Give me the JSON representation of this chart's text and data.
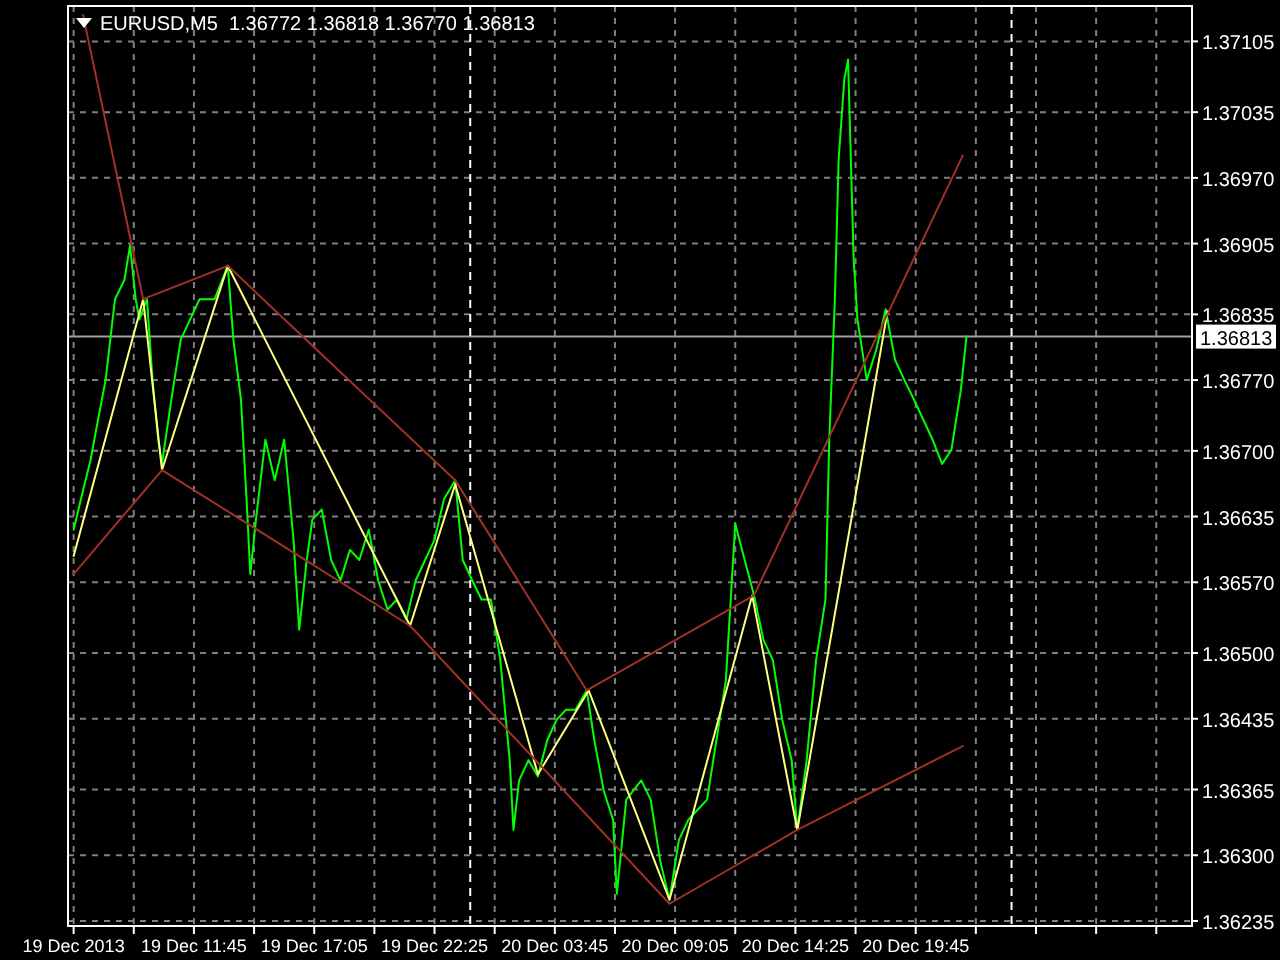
{
  "chart_data": {
    "type": "line",
    "title": "EURUSD,M5  1.36772 1.36818 1.36770 1.36813",
    "xlim": [
      "2013-12-19T06:10",
      "2013-12-21T08:00"
    ],
    "ylim": [
      1.3623,
      1.3714
    ],
    "xticks": [
      {
        "value": "2013-12-19T06:25",
        "label": "19 Dec 2013"
      },
      {
        "value": "2013-12-19T09:05",
        "label": null
      },
      {
        "value": "2013-12-19T11:45",
        "label": "19 Dec 11:45"
      },
      {
        "value": "2013-12-19T14:25",
        "label": null
      },
      {
        "value": "2013-12-19T17:05",
        "label": "19 Dec 17:05"
      },
      {
        "value": "2013-12-19T19:45",
        "label": null
      },
      {
        "value": "2013-12-19T22:25",
        "label": "19 Dec 22:25"
      },
      {
        "value": "2013-12-20T01:05",
        "label": null
      },
      {
        "value": "2013-12-20T03:45",
        "label": "20 Dec 03:45"
      },
      {
        "value": "2013-12-20T06:25",
        "label": null
      },
      {
        "value": "2013-12-20T09:05",
        "label": "20 Dec 09:05"
      },
      {
        "value": "2013-12-20T11:45",
        "label": null
      },
      {
        "value": "2013-12-20T14:25",
        "label": "20 Dec 14:25"
      },
      {
        "value": "2013-12-20T17:05",
        "label": null
      },
      {
        "value": "2013-12-20T19:45",
        "label": "20 Dec 19:45"
      },
      {
        "value": "2013-12-20T22:25",
        "label": null
      },
      {
        "value": "2013-12-21T01:05",
        "label": null
      },
      {
        "value": "2013-12-21T03:45",
        "label": null
      },
      {
        "value": "2013-12-21T06:25",
        "label": null
      }
    ],
    "yticks": [
      {
        "value": 1.37105,
        "label": "1.37105"
      },
      {
        "value": 1.37035,
        "label": "1.37035"
      },
      {
        "value": 1.3697,
        "label": "1.36970"
      },
      {
        "value": 1.36905,
        "label": "1.36905"
      },
      {
        "value": 1.36835,
        "label": "1.36835"
      },
      {
        "value": 1.3677,
        "label": "1.36770"
      },
      {
        "value": 1.367,
        "label": "1.36700"
      },
      {
        "value": 1.36635,
        "label": "1.36635"
      },
      {
        "value": 1.3657,
        "label": "1.36570"
      },
      {
        "value": 1.365,
        "label": "1.36500"
      },
      {
        "value": 1.36435,
        "label": "1.36435"
      },
      {
        "value": 1.36365,
        "label": "1.36365"
      },
      {
        "value": 1.363,
        "label": "1.36300"
      },
      {
        "value": 1.36235,
        "label": "1.36235"
      }
    ],
    "grid": true,
    "ref_lines": [
      {
        "axis": "y",
        "value": 1.36813,
        "label": "1.36813",
        "color": "#a0a0a0",
        "line_style": "solid"
      },
      {
        "axis": "x",
        "value": "2013-12-20T00:00",
        "label": null,
        "color": "#ffffff",
        "line_style": "dashed"
      },
      {
        "axis": "x",
        "value": "2013-12-21T00:00",
        "label": null,
        "color": "#ffffff",
        "line_style": "dashed"
      }
    ],
    "series": [
      {
        "color": "#00ff00",
        "x": [
          "2013-12-19T06:25",
          "2013-12-19T06:50",
          "2013-12-19T07:10",
          "2013-12-19T07:30",
          "2013-12-19T07:50",
          "2013-12-19T08:15",
          "2013-12-19T08:40",
          "2013-12-19T08:55",
          "2013-12-19T09:10",
          "2013-12-19T09:20",
          "2013-12-19T09:40",
          "2013-12-19T09:55",
          "2013-12-19T10:10",
          "2013-12-19T10:20",
          "2013-12-19T10:45",
          "2013-12-19T11:10",
          "2013-12-19T11:35",
          "2013-12-19T12:00",
          "2013-12-19T12:40",
          "2013-12-19T13:15",
          "2013-12-19T13:30",
          "2013-12-19T13:50",
          "2013-12-19T14:05",
          "2013-12-19T14:15",
          "2013-12-19T14:30",
          "2013-12-19T14:55",
          "2013-12-19T15:20",
          "2013-12-19T15:45",
          "2013-12-19T16:10",
          "2013-12-19T16:25",
          "2013-12-19T16:45",
          "2013-12-19T17:00",
          "2013-12-19T17:25",
          "2013-12-19T17:50",
          "2013-12-19T18:15",
          "2013-12-19T18:40",
          "2013-12-19T19:05",
          "2013-12-19T19:30",
          "2013-12-19T19:55",
          "2013-12-19T20:20",
          "2013-12-19T20:45",
          "2013-12-19T21:10",
          "2013-12-19T21:35",
          "2013-12-19T22:00",
          "2013-12-19T22:25",
          "2013-12-19T22:50",
          "2013-12-19T23:20",
          "2013-12-19T23:40",
          "2013-12-20T00:05",
          "2013-12-20T00:30",
          "2013-12-20T00:55",
          "2013-12-20T01:20",
          "2013-12-20T01:45",
          "2013-12-20T01:55",
          "2013-12-20T02:10",
          "2013-12-20T02:35",
          "2013-12-20T03:00",
          "2013-12-20T03:25",
          "2013-12-20T03:50",
          "2013-12-20T04:15",
          "2013-12-20T04:40",
          "2013-12-20T05:10",
          "2013-12-20T05:30",
          "2013-12-20T05:55",
          "2013-12-20T06:20",
          "2013-12-20T06:30",
          "2013-12-20T06:55",
          "2013-12-20T07:35",
          "2013-12-20T08:00",
          "2013-12-20T08:25",
          "2013-12-20T08:50",
          "2013-12-20T09:15",
          "2013-12-20T09:40",
          "2013-12-20T10:05",
          "2013-12-20T10:30",
          "2013-12-20T10:55",
          "2013-12-20T11:20",
          "2013-12-20T11:45",
          "2013-12-20T12:10",
          "2013-12-20T12:35",
          "2013-12-20T13:00",
          "2013-12-20T13:25",
          "2013-12-20T13:50",
          "2013-12-20T14:15",
          "2013-12-20T14:30",
          "2013-12-20T14:55",
          "2013-12-20T15:20",
          "2013-12-20T15:45",
          "2013-12-20T15:55",
          "2013-12-20T16:10",
          "2013-12-20T16:20",
          "2013-12-20T16:35",
          "2013-12-20T16:45",
          "2013-12-20T17:00",
          "2013-12-20T17:10",
          "2013-12-20T17:35",
          "2013-12-20T18:00",
          "2013-12-20T18:25",
          "2013-12-20T18:50",
          "2013-12-20T19:15",
          "2013-12-20T19:40",
          "2013-12-20T20:05",
          "2013-12-20T20:30",
          "2013-12-20T20:55",
          "2013-12-20T21:20",
          "2013-12-20T21:45",
          "2013-12-20T22:00"
        ],
        "values": [
          1.36622,
          1.36661,
          1.36691,
          1.36731,
          1.3677,
          1.3685,
          1.36869,
          1.36903,
          1.3685,
          1.3683,
          1.3685,
          1.3677,
          1.36711,
          1.36687,
          1.36751,
          1.3681,
          1.3683,
          1.3685,
          1.3685,
          1.36883,
          1.3681,
          1.36751,
          1.36652,
          1.36578,
          1.36632,
          1.36711,
          1.36671,
          1.36711,
          1.36612,
          1.36523,
          1.36592,
          1.36632,
          1.36642,
          1.36592,
          1.36572,
          1.36602,
          1.36592,
          1.36622,
          1.36572,
          1.36543,
          1.36553,
          1.36533,
          1.36572,
          1.36592,
          1.36612,
          1.36652,
          1.36671,
          1.36592,
          1.36572,
          1.36553,
          1.36553,
          1.36493,
          1.36394,
          1.36325,
          1.36374,
          1.36394,
          1.36378,
          1.36414,
          1.36434,
          1.36444,
          1.36444,
          1.36463,
          1.36414,
          1.36364,
          1.36335,
          1.36262,
          1.36355,
          1.36374,
          1.36355,
          1.36295,
          1.36256,
          1.36315,
          1.36335,
          1.36345,
          1.36355,
          1.36414,
          1.36473,
          1.36628,
          1.36592,
          1.36557,
          1.36513,
          1.36493,
          1.36434,
          1.36394,
          1.36325,
          1.36394,
          1.36493,
          1.36553,
          1.36711,
          1.3685,
          1.36988,
          1.37067,
          1.37087,
          1.36889,
          1.3683,
          1.3677,
          1.368,
          1.3684,
          1.3679,
          1.3677,
          1.36751,
          1.36731,
          1.36711,
          1.36687,
          1.36701,
          1.3676,
          1.36813
        ]
      },
      {
        "color": "#ffff80",
        "x": [
          "2013-12-19T06:25",
          "2013-12-19T09:30",
          "2013-12-19T10:20",
          "2013-12-19T13:15",
          "2013-12-19T21:20",
          "2013-12-19T23:20",
          "2013-12-20T03:00",
          "2013-12-20T05:15",
          "2013-12-20T08:50",
          "2013-12-20T12:30",
          "2013-12-20T14:30",
          "2013-12-20T18:30"
        ],
        "values": [
          1.36596,
          1.3685,
          1.36681,
          1.36883,
          1.36527,
          1.36667,
          1.3638,
          1.36463,
          1.36256,
          1.36557,
          1.36325,
          1.36838
        ]
      },
      {
        "color": "#a03028",
        "x": [
          "2013-12-19T06:50",
          "2013-12-19T09:30",
          "2013-12-19T13:15",
          "2013-12-19T23:20",
          "2013-12-20T05:10",
          "2013-12-20T12:35",
          "2013-12-20T21:50"
        ],
        "values": [
          1.37131,
          1.3685,
          1.36883,
          1.36671,
          1.36463,
          1.36557,
          1.36992
        ]
      },
      {
        "color": "#a03028",
        "x": [
          "2013-12-19T06:25",
          "2013-12-19T10:20",
          "2013-12-19T21:20",
          "2013-12-20T08:50",
          "2013-12-20T14:30",
          "2013-12-20T21:50"
        ],
        "values": [
          1.36578,
          1.36681,
          1.36527,
          1.36252,
          1.36325,
          1.36408
        ]
      }
    ]
  }
}
